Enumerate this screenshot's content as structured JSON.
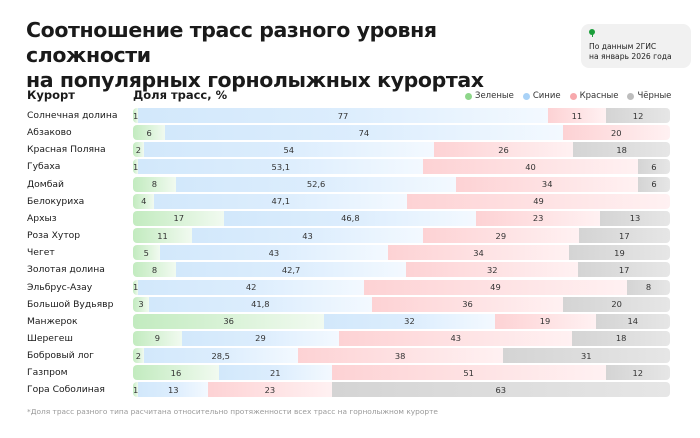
{
  "header": {
    "title_line1": "Соотношение трасс разного уровня сложности",
    "title_line2": "на популярных горнолыжных курортах",
    "source_line1": "По данным 2ГИС",
    "source_line2": "на январь 2026 года"
  },
  "footnote": "*Доля трасс разного типа расчитана относительно протяженности всех трасс на горнолыжном курорте",
  "chart_data": {
    "type": "bar",
    "stacked": true,
    "orientation": "horizontal",
    "title": "Соотношение трасс разного уровня сложности на популярных горнолыжных курортах",
    "category_header": "Курорт",
    "xlabel": "Доля трасс, %",
    "legend_position": "top-right",
    "categories": [
      "Солнечная долина",
      "Абзаково",
      "Красная Поляна",
      "Губаха",
      "Домбай",
      "Белокуриха",
      "Архыз",
      "Роза Хутор",
      "Чегет",
      "Золотая долина",
      "Эльбрус-Азау",
      "Большой Вудьявр",
      "Манжерок",
      "Шерегеш",
      "Бобровый лог",
      "Газпром",
      "Гора Соболиная"
    ],
    "series": [
      {
        "name": "Зеленые",
        "key": "green",
        "color": "#8ed68a",
        "values": [
          1,
          6,
          2,
          1,
          8,
          4,
          17,
          11,
          5,
          8,
          1,
          3,
          36,
          9,
          2,
          16,
          1
        ]
      },
      {
        "name": "Синие",
        "key": "blue",
        "color": "#a9d2f7",
        "values": [
          77,
          74,
          54,
          53.1,
          52.6,
          47.1,
          46.8,
          43,
          43,
          42.7,
          42,
          41.8,
          32,
          29,
          28.5,
          21,
          13
        ]
      },
      {
        "name": "Красные",
        "key": "red",
        "color": "#f7a8ac",
        "values": [
          11,
          20,
          26,
          40,
          34,
          49,
          23,
          29,
          34,
          32,
          49,
          36,
          19,
          43,
          38,
          51,
          23
        ]
      },
      {
        "name": "Чёрные",
        "key": "black",
        "color": "#bdbdbd",
        "values": [
          12,
          0,
          18,
          6,
          6,
          0,
          13,
          17,
          19,
          17,
          8,
          20,
          14,
          18,
          31,
          12,
          63
        ]
      }
    ]
  }
}
